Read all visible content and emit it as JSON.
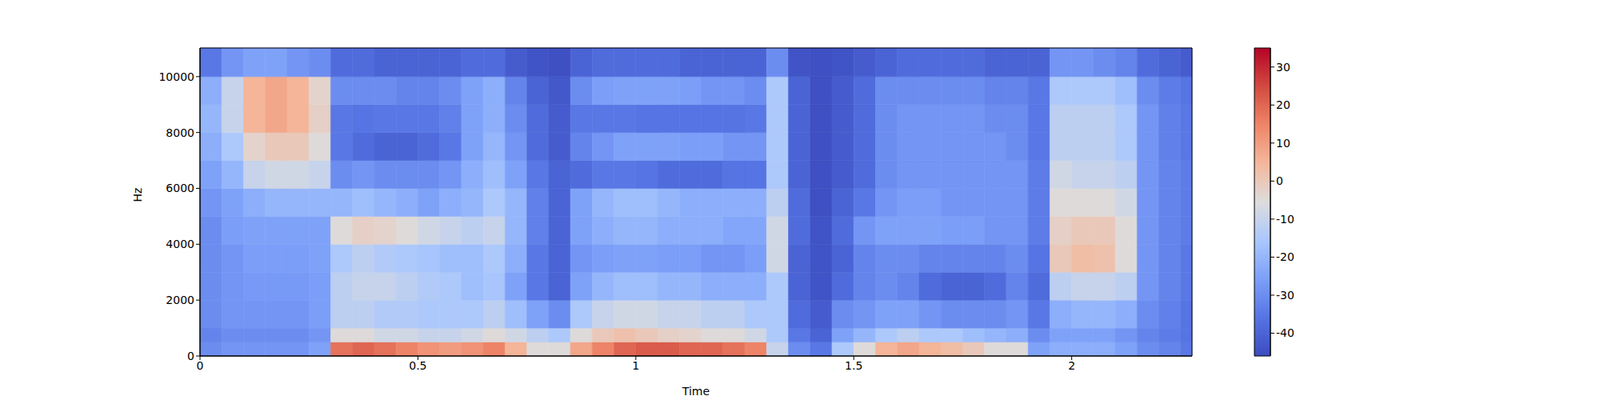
{
  "chart_data": {
    "type": "heatmap",
    "x_label": "Time",
    "y_label": "Hz",
    "xlim": [
      0,
      2.276
    ],
    "xticks": [
      0,
      0.5,
      1,
      1.5,
      2
    ],
    "ylim": [
      0,
      11025
    ],
    "yticks": [
      0,
      2000,
      4000,
      6000,
      8000,
      10000
    ],
    "x_bins": [
      0,
      0.05,
      0.1,
      0.15,
      0.2,
      0.25,
      0.3,
      0.35,
      0.4,
      0.45,
      0.5,
      0.55,
      0.6,
      0.65,
      0.7,
      0.75,
      0.8,
      0.85,
      0.9,
      0.95,
      1,
      1.05,
      1.1,
      1.15,
      1.2,
      1.25,
      1.3,
      1.35,
      1.4,
      1.45,
      1.5,
      1.55,
      1.6,
      1.65,
      1.7,
      1.75,
      1.8,
      1.85,
      1.9,
      1.95,
      2,
      2.05,
      2.1,
      2.15,
      2.2,
      2.25,
      2.276
    ],
    "y_bins": [
      0,
      500,
      1000,
      2000,
      3000,
      4000,
      5000,
      6000,
      7000,
      8000,
      9000,
      10000,
      11025
    ],
    "cells": [
      [
        -30,
        -28,
        -28,
        -28,
        -28,
        -25,
        18,
        20,
        18,
        15,
        12,
        10,
        12,
        15,
        5,
        -5,
        -5,
        8,
        15,
        20,
        22,
        22,
        20,
        20,
        18,
        15,
        -10,
        -30,
        -35,
        -15,
        -5,
        5,
        8,
        5,
        3,
        0,
        -5,
        -5,
        -25,
        -22,
        -22,
        -22,
        -25,
        -30,
        -32,
        -35
      ],
      [
        -32,
        -30,
        -30,
        -30,
        -30,
        -28,
        -5,
        -5,
        -8,
        -8,
        -10,
        -10,
        -8,
        -5,
        -8,
        -12,
        -15,
        -5,
        0,
        2,
        0,
        -2,
        -3,
        -5,
        -5,
        -8,
        -15,
        -35,
        -40,
        -25,
        -20,
        -15,
        -12,
        -15,
        -15,
        -18,
        -20,
        -22,
        -30,
        -25,
        -25,
        -25,
        -28,
        -32,
        -34,
        -36
      ],
      [
        -30,
        -28,
        -28,
        -28,
        -28,
        -26,
        -12,
        -12,
        -14,
        -14,
        -15,
        -15,
        -15,
        -12,
        -18,
        -25,
        -30,
        -15,
        -10,
        -8,
        -8,
        -10,
        -10,
        -12,
        -12,
        -15,
        -15,
        -38,
        -42,
        -30,
        -28,
        -25,
        -25,
        -28,
        -30,
        -30,
        -30,
        -28,
        -35,
        -22,
        -20,
        -20,
        -22,
        -30,
        -33,
        -36
      ],
      [
        -30,
        -28,
        -27,
        -27,
        -27,
        -26,
        -12,
        -10,
        -10,
        -12,
        -14,
        -15,
        -18,
        -16,
        -25,
        -35,
        -40,
        -25,
        -20,
        -18,
        -18,
        -20,
        -20,
        -22,
        -22,
        -22,
        -15,
        -40,
        -44,
        -38,
        -32,
        -30,
        -32,
        -38,
        -40,
        -40,
        -38,
        -32,
        -38,
        -12,
        -10,
        -10,
        -12,
        -28,
        -32,
        -35
      ],
      [
        -30,
        -28,
        -26,
        -26,
        -26,
        -25,
        -15,
        -12,
        -14,
        -15,
        -16,
        -18,
        -18,
        -15,
        -22,
        -35,
        -40,
        -28,
        -26,
        -25,
        -25,
        -26,
        -26,
        -28,
        -28,
        -26,
        -8,
        -40,
        -44,
        -40,
        -32,
        -30,
        -30,
        -32,
        -32,
        -32,
        -32,
        -30,
        -36,
        0,
        3,
        2,
        -5,
        -28,
        -32,
        -35
      ],
      [
        -30,
        -26,
        -25,
        -25,
        -25,
        -25,
        -5,
        -2,
        -3,
        -5,
        -8,
        -10,
        -12,
        -10,
        -20,
        -33,
        -40,
        -25,
        -22,
        -20,
        -20,
        -22,
        -22,
        -22,
        -24,
        -24,
        -8,
        -38,
        -44,
        -38,
        -28,
        -25,
        -25,
        -25,
        -26,
        -26,
        -28,
        -28,
        -34,
        -2,
        0,
        0,
        -5,
        -28,
        -32,
        -34
      ],
      [
        -28,
        -25,
        -22,
        -20,
        -20,
        -20,
        -20,
        -18,
        -20,
        -22,
        -25,
        -22,
        -20,
        -15,
        -20,
        -33,
        -40,
        -25,
        -20,
        -18,
        -18,
        -20,
        -22,
        -22,
        -22,
        -22,
        -12,
        -38,
        -45,
        -40,
        -35,
        -28,
        -26,
        -26,
        -28,
        -28,
        -28,
        -28,
        -34,
        -5,
        -5,
        -5,
        -8,
        -28,
        -32,
        -34
      ],
      [
        -25,
        -20,
        -10,
        -8,
        -8,
        -10,
        -30,
        -28,
        -30,
        -30,
        -30,
        -28,
        -22,
        -18,
        -25,
        -35,
        -40,
        -38,
        -35,
        -35,
        -36,
        -38,
        -38,
        -38,
        -36,
        -36,
        -15,
        -40,
        -45,
        -42,
        -38,
        -30,
        -28,
        -28,
        -28,
        -28,
        -28,
        -28,
        -34,
        -8,
        -10,
        -10,
        -12,
        -28,
        -32,
        -34
      ],
      [
        -22,
        -15,
        -3,
        0,
        0,
        -5,
        -35,
        -38,
        -40,
        -40,
        -38,
        -35,
        -25,
        -20,
        -28,
        -38,
        -42,
        -32,
        -28,
        -25,
        -25,
        -25,
        -26,
        -26,
        -28,
        -28,
        -15,
        -40,
        -45,
        -42,
        -38,
        -30,
        -28,
        -28,
        -28,
        -28,
        -28,
        -30,
        -35,
        -12,
        -12,
        -12,
        -15,
        -28,
        -33,
        -35
      ],
      [
        -20,
        -10,
        5,
        8,
        5,
        -2,
        -35,
        -36,
        -35,
        -35,
        -35,
        -33,
        -25,
        -22,
        -30,
        -38,
        -42,
        -35,
        -35,
        -35,
        -36,
        -36,
        -36,
        -36,
        -36,
        -35,
        -15,
        -40,
        -45,
        -42,
        -38,
        -30,
        -28,
        -28,
        -28,
        -28,
        -30,
        -30,
        -35,
        -12,
        -12,
        -12,
        -15,
        -28,
        -33,
        -35
      ],
      [
        -22,
        -10,
        5,
        8,
        5,
        -3,
        -30,
        -30,
        -30,
        -32,
        -32,
        -30,
        -25,
        -22,
        -32,
        -40,
        -43,
        -30,
        -26,
        -25,
        -25,
        -25,
        -26,
        -28,
        -28,
        -30,
        -15,
        -40,
        -45,
        -42,
        -38,
        -30,
        -30,
        -30,
        -30,
        -30,
        -32,
        -32,
        -35,
        -15,
        -15,
        -15,
        -18,
        -30,
        -34,
        -36
      ],
      [
        -35,
        -28,
        -25,
        -25,
        -28,
        -30,
        -38,
        -38,
        -40,
        -40,
        -40,
        -40,
        -38,
        -38,
        -42,
        -44,
        -45,
        -40,
        -38,
        -38,
        -38,
        -38,
        -40,
        -40,
        -40,
        -40,
        -30,
        -44,
        -45,
        -44,
        -42,
        -40,
        -38,
        -38,
        -38,
        -38,
        -40,
        -40,
        -40,
        -28,
        -28,
        -30,
        -32,
        -38,
        -40,
        -42
      ]
    ],
    "colorbar": {
      "range": [
        -46,
        35
      ],
      "ticks": [
        -40,
        -30,
        -20,
        -10,
        0,
        10,
        20,
        30
      ]
    }
  }
}
